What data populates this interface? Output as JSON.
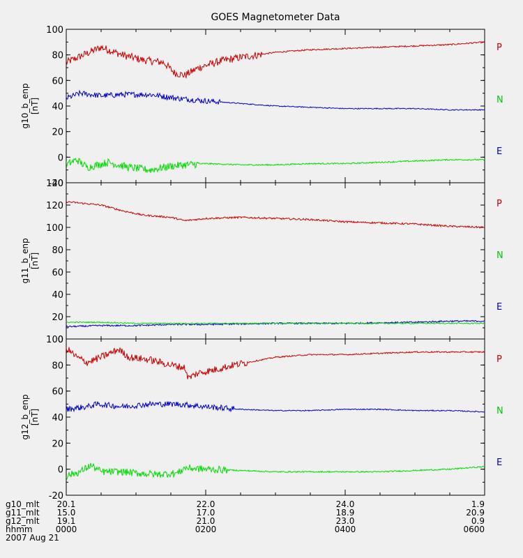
{
  "title": "GOES Magnetometer Data",
  "colors": {
    "P": "#cc0000",
    "N": "#0000cc",
    "E": "#00dd00",
    "N_label": "#00cc00",
    "E_label": "#0000cc"
  },
  "chart_data": [
    {
      "type": "line",
      "ylabel": "g10_b_enp",
      "unit": "[nT]",
      "ylim": [
        -20,
        100
      ],
      "yticks": [
        -20,
        0,
        20,
        40,
        60,
        80,
        100
      ],
      "labels": [
        "P",
        "N",
        "E"
      ],
      "series": [
        {
          "name": "P",
          "color": "#cc0000",
          "noise": 3,
          "points": [
            [
              0,
              74
            ],
            [
              0.25,
              80
            ],
            [
              0.5,
              86
            ],
            [
              0.8,
              80
            ],
            [
              1.1,
              76
            ],
            [
              1.4,
              74
            ],
            [
              1.55,
              66
            ],
            [
              1.7,
              64
            ],
            [
              1.9,
              70
            ],
            [
              2.2,
              75
            ],
            [
              2.5,
              78
            ],
            [
              3.0,
              82
            ],
            [
              3.5,
              84
            ],
            [
              4.0,
              85
            ],
            [
              4.5,
              86
            ],
            [
              5.0,
              87
            ],
            [
              5.5,
              88
            ],
            [
              6.0,
              90
            ]
          ],
          "quiet_after": 2.8
        },
        {
          "name": "N",
          "color": "#0000cc",
          "noise": 2.2,
          "points": [
            [
              0,
              46
            ],
            [
              0.2,
              50
            ],
            [
              0.5,
              48
            ],
            [
              0.8,
              49
            ],
            [
              1.2,
              49
            ],
            [
              1.6,
              46
            ],
            [
              2.0,
              44
            ],
            [
              2.5,
              42
            ],
            [
              3.0,
              40
            ],
            [
              3.5,
              39
            ],
            [
              4.0,
              38
            ],
            [
              4.5,
              38
            ],
            [
              5.0,
              38
            ],
            [
              5.5,
              37
            ],
            [
              6.0,
              37
            ]
          ],
          "quiet_after": 2.2
        },
        {
          "name": "E",
          "color": "#00dd00",
          "noise": 3,
          "points": [
            [
              0,
              -6
            ],
            [
              0.15,
              -2
            ],
            [
              0.3,
              -8
            ],
            [
              0.6,
              -4
            ],
            [
              0.9,
              -8
            ],
            [
              1.2,
              -10
            ],
            [
              1.5,
              -7
            ],
            [
              1.7,
              -6
            ],
            [
              2.0,
              -5
            ],
            [
              2.5,
              -6
            ],
            [
              3.0,
              -6
            ],
            [
              3.5,
              -5
            ],
            [
              4.0,
              -5
            ],
            [
              4.5,
              -4
            ],
            [
              5.0,
              -3
            ],
            [
              5.5,
              -2
            ],
            [
              6.0,
              -2
            ]
          ],
          "quiet_after": 1.9
        }
      ]
    },
    {
      "type": "line",
      "ylabel": "g11_b_enp",
      "unit": "[nT]",
      "ylim": [
        0,
        140
      ],
      "yticks": [
        0,
        20,
        40,
        60,
        80,
        100,
        120,
        140
      ],
      "labels": [
        "P",
        "N",
        "E"
      ],
      "series": [
        {
          "name": "P",
          "color": "#cc0000",
          "noise": 0.8,
          "points": [
            [
              0,
              123
            ],
            [
              0.5,
              120
            ],
            [
              0.8,
              115
            ],
            [
              1.1,
              111
            ],
            [
              1.5,
              109
            ],
            [
              1.7,
              106
            ],
            [
              2.0,
              108
            ],
            [
              2.5,
              109
            ],
            [
              3.0,
              108
            ],
            [
              3.5,
              107
            ],
            [
              4.0,
              105
            ],
            [
              4.5,
              104
            ],
            [
              5.0,
              103
            ],
            [
              5.5,
              101
            ],
            [
              6.0,
              100
            ]
          ],
          "quiet_after": 0
        },
        {
          "name": "N",
          "color": "#0000cc",
          "noise": 0.7,
          "points": [
            [
              0,
              11
            ],
            [
              0.5,
              12
            ],
            [
              1.0,
              12
            ],
            [
              1.5,
              13
            ],
            [
              2.0,
              13
            ],
            [
              3.0,
              14
            ],
            [
              4.0,
              14
            ],
            [
              5.0,
              15
            ],
            [
              5.5,
              16
            ],
            [
              6.0,
              16
            ]
          ],
          "quiet_after": 0
        },
        {
          "name": "E",
          "color": "#00dd00",
          "noise": 0.5,
          "points": [
            [
              0,
              15
            ],
            [
              0.5,
              15
            ],
            [
              1.0,
              14
            ],
            [
              1.5,
              14
            ],
            [
              2.0,
              14
            ],
            [
              3.0,
              14
            ],
            [
              4.0,
              14
            ],
            [
              5.0,
              14
            ],
            [
              6.0,
              14
            ]
          ],
          "quiet_after": 0
        }
      ]
    },
    {
      "type": "line",
      "ylabel": "g12_b_enp",
      "unit": "[nT]",
      "ylim": [
        -20,
        100
      ],
      "yticks": [
        -20,
        0,
        20,
        40,
        60,
        80,
        100
      ],
      "labels": [
        "P",
        "N",
        "E"
      ],
      "series": [
        {
          "name": "P",
          "color": "#cc0000",
          "noise": 2.8,
          "points": [
            [
              0,
              93
            ],
            [
              0.15,
              86
            ],
            [
              0.3,
              82
            ],
            [
              0.5,
              86
            ],
            [
              0.75,
              92
            ],
            [
              0.9,
              86
            ],
            [
              1.2,
              84
            ],
            [
              1.5,
              80
            ],
            [
              1.7,
              78
            ],
            [
              1.75,
              70
            ],
            [
              1.9,
              74
            ],
            [
              2.1,
              76
            ],
            [
              2.4,
              80
            ],
            [
              3.0,
              86
            ],
            [
              3.5,
              88
            ],
            [
              4.0,
              88
            ],
            [
              4.5,
              89
            ],
            [
              5.0,
              90
            ],
            [
              6.0,
              90
            ]
          ],
          "quiet_after": 2.6
        },
        {
          "name": "N",
          "color": "#0000cc",
          "noise": 2.2,
          "points": [
            [
              0,
              46
            ],
            [
              0.3,
              48
            ],
            [
              0.45,
              50
            ],
            [
              0.8,
              48
            ],
            [
              1.2,
              50
            ],
            [
              1.6,
              50
            ],
            [
              2.0,
              48
            ],
            [
              2.5,
              46
            ],
            [
              3.0,
              45
            ],
            [
              3.5,
              45
            ],
            [
              4.0,
              46
            ],
            [
              4.5,
              46
            ],
            [
              5.0,
              45
            ],
            [
              5.5,
              45
            ],
            [
              6.0,
              44
            ]
          ],
          "quiet_after": 2.4
        },
        {
          "name": "E",
          "color": "#00dd00",
          "noise": 2.8,
          "points": [
            [
              0,
              -5
            ],
            [
              0.2,
              -2
            ],
            [
              0.35,
              3
            ],
            [
              0.5,
              -2
            ],
            [
              0.8,
              -2
            ],
            [
              1.0,
              -3
            ],
            [
              1.3,
              -4
            ],
            [
              1.6,
              -3
            ],
            [
              1.7,
              1
            ],
            [
              2.0,
              0
            ],
            [
              2.5,
              -1
            ],
            [
              3.0,
              -2
            ],
            [
              3.5,
              -2
            ],
            [
              4.0,
              -2
            ],
            [
              4.5,
              -2
            ],
            [
              5.0,
              -1
            ],
            [
              5.5,
              0
            ],
            [
              6.0,
              2
            ]
          ],
          "quiet_after": 2.3
        }
      ]
    }
  ],
  "xaxis": {
    "rows": [
      {
        "name": "g10_mlt",
        "values": [
          "20.1",
          "22.0",
          "24.0",
          "1.9"
        ]
      },
      {
        "name": "g11_mlt",
        "values": [
          "15.0",
          "17.0",
          "18.9",
          "20.9"
        ]
      },
      {
        "name": "g12_mlt",
        "values": [
          "19.1",
          "21.0",
          "23.0",
          "0.9"
        ]
      },
      {
        "name": "hhmm",
        "values": [
          "0000",
          "0200",
          "0400",
          "0600"
        ]
      }
    ],
    "date": "2007 Aug 21",
    "major_hours": [
      0,
      2,
      4,
      6
    ],
    "minor_hours": [
      0.5,
      1,
      1.5,
      2.5,
      3,
      3.5,
      4.5,
      5,
      5.5
    ]
  }
}
